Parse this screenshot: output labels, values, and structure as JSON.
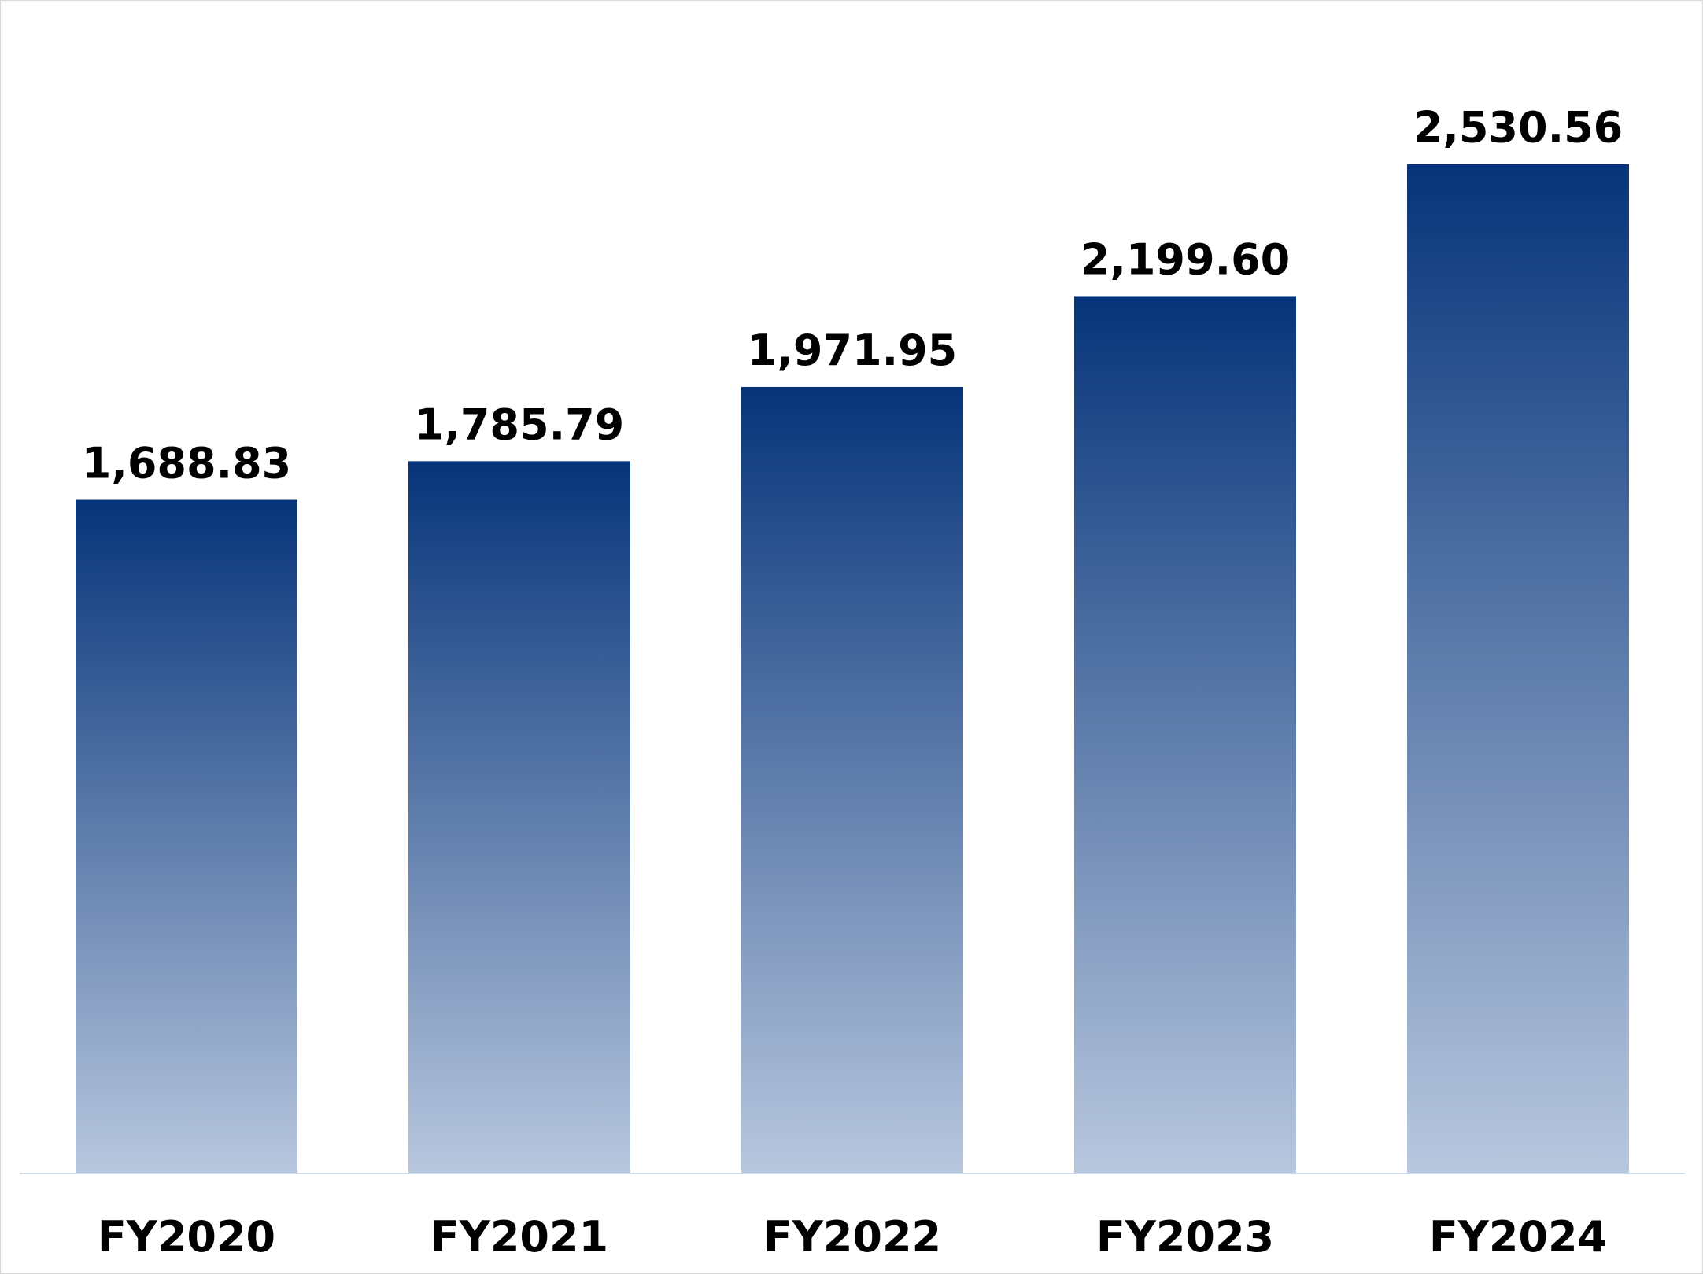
{
  "chart_data": {
    "type": "bar",
    "categories": [
      "FY2020",
      "FY2021",
      "FY2022",
      "FY2023",
      "FY2024"
    ],
    "values": [
      1688.83,
      1785.79,
      1971.95,
      2199.6,
      2530.56
    ],
    "value_labels": [
      "1,688.83",
      "1,785.79",
      "1,971.95",
      "2,199.60",
      "2,530.56"
    ],
    "title": "",
    "xlabel": "",
    "ylabel": "",
    "ylim": [
      0,
      2940
    ],
    "grid": false,
    "legend": "none",
    "colors": {
      "bar_top": "#06347a",
      "bar_bottom": "#b8c7de",
      "baseline": "#cfdbe9"
    }
  }
}
